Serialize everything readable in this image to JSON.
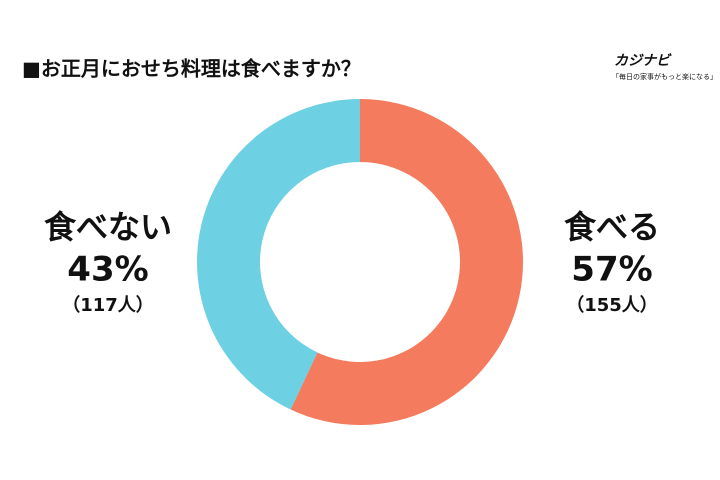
{
  "brand": {
    "name": "カジナビ",
    "tagline": "「毎日の家事がもっと楽になる」"
  },
  "chart_data": {
    "type": "pie",
    "title": "■お正月におせち料理は食べますか？",
    "categories": [
      "食べる",
      "食べない"
    ],
    "values": [
      57,
      43
    ],
    "value_labels": [
      "57%",
      "43%"
    ],
    "count_labels": [
      "（155人）",
      "（117人）"
    ],
    "colors": [
      "#f47b5e",
      "#6dd0e3"
    ]
  }
}
